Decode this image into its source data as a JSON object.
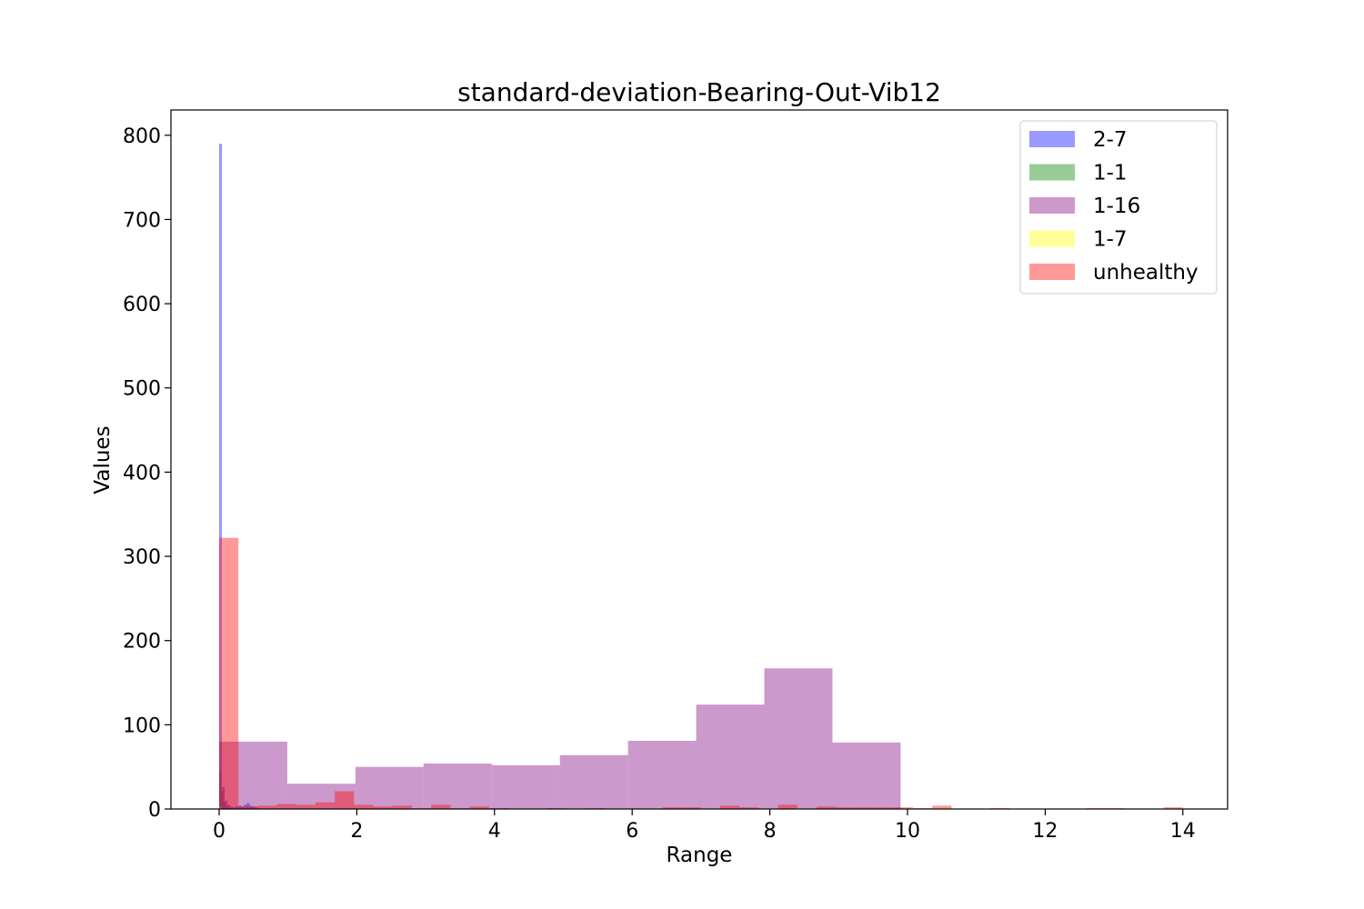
{
  "chart_data": {
    "type": "bar",
    "title": "standard-deviation-Bearing-Out-Vib12",
    "xlabel": "Range",
    "ylabel": "Values",
    "xlim": [
      -0.7,
      14.65
    ],
    "ylim": [
      0,
      830
    ],
    "xticks": [
      0,
      2,
      4,
      6,
      8,
      10,
      12,
      14
    ],
    "yticks": [
      0,
      100,
      200,
      300,
      400,
      500,
      600,
      700,
      800
    ],
    "grid": false,
    "legend_position": "top-right",
    "series": [
      {
        "name": "2-7",
        "color": "#0000ff",
        "opacity": 0.4,
        "bins": [
          {
            "x0": 0.0,
            "x1": 0.04,
            "value": 790
          },
          {
            "x0": 0.04,
            "x1": 0.08,
            "value": 26
          },
          {
            "x0": 0.08,
            "x1": 0.12,
            "value": 10
          },
          {
            "x0": 0.12,
            "x1": 0.16,
            "value": 5
          },
          {
            "x0": 0.16,
            "x1": 0.2,
            "value": 3
          },
          {
            "x0": 0.2,
            "x1": 0.24,
            "value": 2
          },
          {
            "x0": 0.24,
            "x1": 0.28,
            "value": 3
          },
          {
            "x0": 0.28,
            "x1": 0.32,
            "value": 4
          },
          {
            "x0": 0.32,
            "x1": 0.36,
            "value": 3
          },
          {
            "x0": 0.36,
            "x1": 0.4,
            "value": 5
          },
          {
            "x0": 0.4,
            "x1": 0.44,
            "value": 7
          },
          {
            "x0": 0.44,
            "x1": 0.48,
            "value": 4
          },
          {
            "x0": 0.48,
            "x1": 0.52,
            "value": 3
          },
          {
            "x0": 0.52,
            "x1": 0.56,
            "value": 2
          }
        ]
      },
      {
        "name": "1-1",
        "color": "#008000",
        "opacity": 0.4,
        "bins": [
          {
            "x0": 0.0,
            "x1": 0.03,
            "value": 45
          },
          {
            "x0": 0.03,
            "x1": 0.06,
            "value": 20
          },
          {
            "x0": 0.06,
            "x1": 0.09,
            "value": 8
          },
          {
            "x0": 0.09,
            "x1": 0.12,
            "value": 4
          },
          {
            "x0": 0.12,
            "x1": 0.15,
            "value": 2
          }
        ]
      },
      {
        "name": "1-16",
        "color": "#800080",
        "opacity": 0.4,
        "bins": [
          {
            "x0": 0.0,
            "x1": 0.99,
            "value": 80
          },
          {
            "x0": 0.99,
            "x1": 1.98,
            "value": 30
          },
          {
            "x0": 1.98,
            "x1": 2.97,
            "value": 50
          },
          {
            "x0": 2.97,
            "x1": 3.96,
            "value": 54
          },
          {
            "x0": 3.96,
            "x1": 4.95,
            "value": 52
          },
          {
            "x0": 4.95,
            "x1": 5.94,
            "value": 64
          },
          {
            "x0": 5.94,
            "x1": 6.93,
            "value": 81
          },
          {
            "x0": 6.93,
            "x1": 7.92,
            "value": 124
          },
          {
            "x0": 7.92,
            "x1": 8.91,
            "value": 167
          },
          {
            "x0": 8.91,
            "x1": 9.9,
            "value": 79
          }
        ]
      },
      {
        "name": "1-7",
        "color": "#ffff00",
        "opacity": 0.4,
        "bins": [
          {
            "x0": 0.0,
            "x1": 0.02,
            "value": 3
          },
          {
            "x0": 0.02,
            "x1": 0.04,
            "value": 2
          }
        ]
      },
      {
        "name": "unhealthy",
        "color": "#ff0000",
        "opacity": 0.4,
        "bins": [
          {
            "x0": 0.0,
            "x1": 0.28,
            "value": 322
          },
          {
            "x0": 0.28,
            "x1": 0.56,
            "value": 3
          },
          {
            "x0": 0.56,
            "x1": 0.84,
            "value": 4
          },
          {
            "x0": 0.84,
            "x1": 1.12,
            "value": 6
          },
          {
            "x0": 1.12,
            "x1": 1.4,
            "value": 5
          },
          {
            "x0": 1.4,
            "x1": 1.68,
            "value": 8
          },
          {
            "x0": 1.68,
            "x1": 1.96,
            "value": 21
          },
          {
            "x0": 1.96,
            "x1": 2.24,
            "value": 5
          },
          {
            "x0": 2.24,
            "x1": 2.52,
            "value": 3
          },
          {
            "x0": 2.52,
            "x1": 2.8,
            "value": 4
          },
          {
            "x0": 2.8,
            "x1": 3.08,
            "value": 1
          },
          {
            "x0": 3.08,
            "x1": 3.36,
            "value": 5
          },
          {
            "x0": 3.36,
            "x1": 3.64,
            "value": 1
          },
          {
            "x0": 3.64,
            "x1": 3.92,
            "value": 3
          },
          {
            "x0": 3.92,
            "x1": 4.2,
            "value": 1
          },
          {
            "x0": 4.76,
            "x1": 5.04,
            "value": 1
          },
          {
            "x0": 5.32,
            "x1": 5.6,
            "value": 1
          },
          {
            "x0": 6.44,
            "x1": 6.72,
            "value": 2
          },
          {
            "x0": 6.72,
            "x1": 7.0,
            "value": 2
          },
          {
            "x0": 7.28,
            "x1": 7.56,
            "value": 4
          },
          {
            "x0": 7.56,
            "x1": 7.84,
            "value": 2
          },
          {
            "x0": 8.12,
            "x1": 8.4,
            "value": 5
          },
          {
            "x0": 8.68,
            "x1": 8.96,
            "value": 3
          },
          {
            "x0": 8.96,
            "x1": 9.24,
            "value": 2
          },
          {
            "x0": 9.24,
            "x1": 9.52,
            "value": 2
          },
          {
            "x0": 9.52,
            "x1": 9.8,
            "value": 2
          },
          {
            "x0": 9.8,
            "x1": 10.08,
            "value": 2
          },
          {
            "x0": 10.08,
            "x1": 10.36,
            "value": 1
          },
          {
            "x0": 10.36,
            "x1": 10.64,
            "value": 4
          },
          {
            "x0": 11.2,
            "x1": 11.48,
            "value": 1
          },
          {
            "x0": 12.6,
            "x1": 12.88,
            "value": 1
          },
          {
            "x0": 12.88,
            "x1": 13.16,
            "value": 1
          },
          {
            "x0": 13.72,
            "x1": 14.0,
            "value": 2
          }
        ]
      }
    ]
  }
}
